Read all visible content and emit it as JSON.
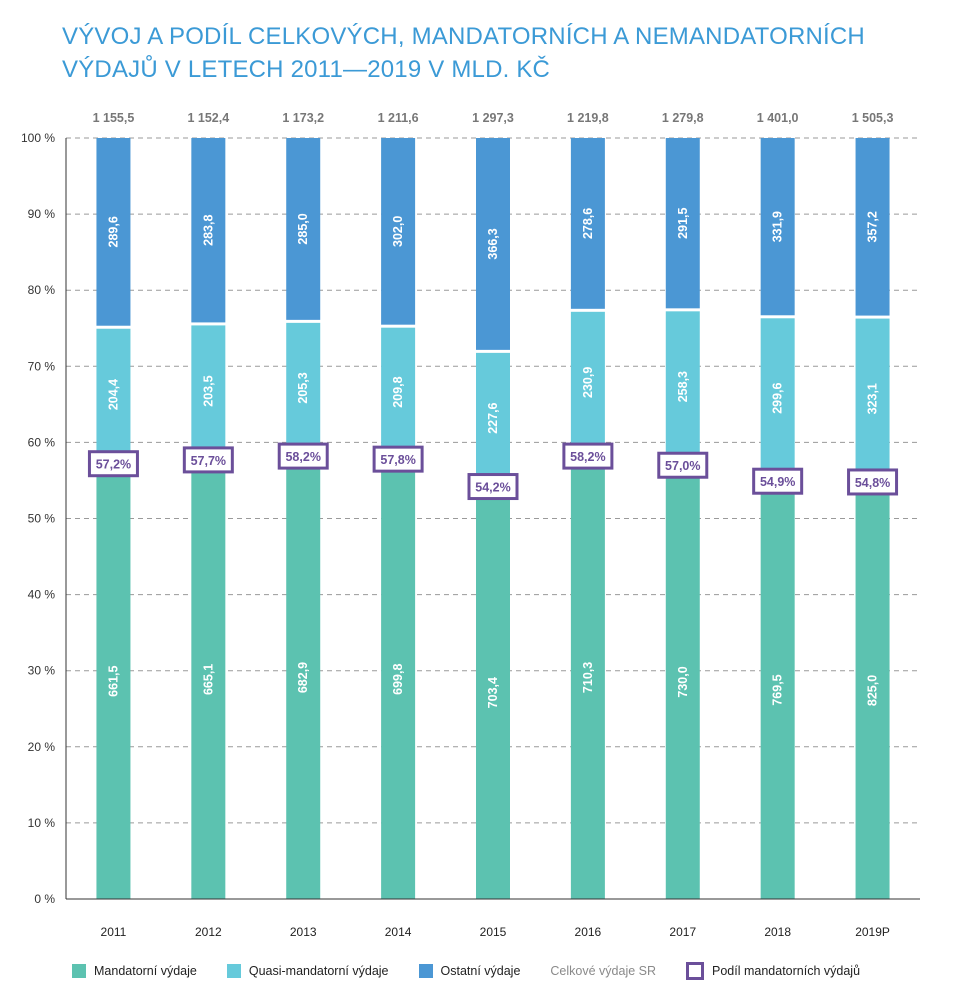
{
  "chart_data": {
    "type": "bar",
    "stacked": true,
    "normalized": true,
    "title_lines": [
      "VÝVOJ A PODÍL CELKOVÝCH, MANDATORNÍCH A NEMANDATORNÍCH",
      "VÝDAJŮ V LETECH 2011—2019 V MLD. KČ"
    ],
    "categories": [
      "2011",
      "2012",
      "2013",
      "2014",
      "2015",
      "2016",
      "2017",
      "2018",
      "2019P"
    ],
    "yticks": [
      "0 %",
      "10 %",
      "20 %",
      "30 %",
      "40 %",
      "50 %",
      "60 %",
      "70 %",
      "80 %",
      "90 %",
      "100 %"
    ],
    "ylim": [
      0,
      100
    ],
    "grid": true,
    "legend_position": "bottom",
    "series": [
      {
        "name": "Mandatorní výdaje",
        "color": "#5cc2b0",
        "values": [
          661.5,
          665.1,
          682.9,
          699.8,
          703.4,
          710.3,
          730.0,
          769.5,
          825.0
        ],
        "labels": [
          "661,5",
          "665,1",
          "682,9",
          "699,8",
          "703,4",
          "710,3",
          "730,0",
          "769,5",
          "825,0"
        ]
      },
      {
        "name": "Quasi-mandatorní výdaje",
        "color": "#66cadb",
        "values": [
          204.4,
          203.5,
          205.3,
          209.8,
          227.6,
          230.9,
          258.3,
          299.6,
          323.1
        ],
        "labels": [
          "204,4",
          "203,5",
          "205,3",
          "209,8",
          "227,6",
          "230,9",
          "258,3",
          "299,6",
          "323,1"
        ]
      },
      {
        "name": "Ostatní výdaje",
        "color": "#4b97d4",
        "values": [
          289.6,
          283.8,
          285.0,
          302.0,
          366.3,
          278.6,
          291.5,
          331.9,
          357.2
        ],
        "labels": [
          "289,6",
          "283,8",
          "285,0",
          "302,0",
          "366,3",
          "278,6",
          "291,5",
          "331,9",
          "357,2"
        ]
      }
    ],
    "totals": {
      "name": "Celkové výdaje SR",
      "values": [
        1155.5,
        1152.4,
        1173.2,
        1211.6,
        1297.3,
        1219.8,
        1279.8,
        1401.0,
        1505.3
      ],
      "labels": [
        "1 155,5",
        "1 152,4",
        "1 173,2",
        "1 211,6",
        "1 297,3",
        "1 219,8",
        "1 279,8",
        "1 401,0",
        "1 505,3"
      ]
    },
    "mandatory_share": {
      "name": "Podíl mandatorních výdajů",
      "color": "#6b4f9a",
      "values": [
        57.2,
        57.7,
        58.2,
        57.8,
        54.2,
        58.2,
        57.0,
        54.9,
        54.8
      ],
      "labels": [
        "57,2%",
        "57,7%",
        "58,2%",
        "57,8%",
        "54,2%",
        "58,2%",
        "57,0%",
        "54,9%",
        "54,8%"
      ]
    }
  }
}
